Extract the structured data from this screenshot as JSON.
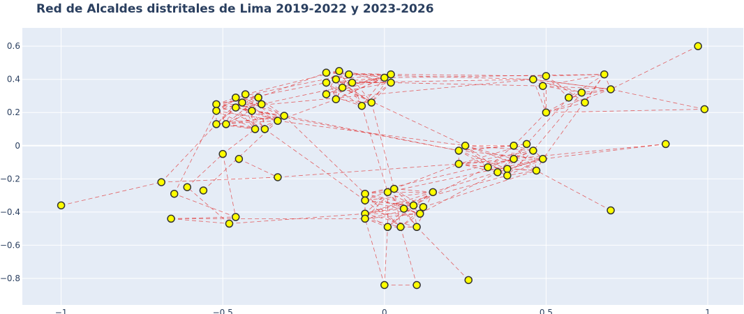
{
  "chart_data": {
    "type": "scatter",
    "title": "Red de Alcaldes distritales de Lima 2019-2022 y 2023-2026",
    "xlabel": "",
    "ylabel": "",
    "xlim": [
      -1.12,
      1.11
    ],
    "ylim": [
      -0.96,
      0.71
    ],
    "xticks": [
      -1,
      -0.5,
      0,
      0.5,
      1
    ],
    "xtick_labels": [
      "−1",
      "−0.5",
      "0",
      "0.5",
      "1"
    ],
    "yticks": [
      0.6,
      0.4,
      0.2,
      0,
      -0.2,
      -0.4,
      -0.6,
      -0.8
    ],
    "ytick_labels": [
      "0.6",
      "0.4",
      "0.2",
      "0",
      "−0.2",
      "−0.4",
      "−0.6",
      "−0.8"
    ],
    "grid": true,
    "colors": {
      "plot_bg": "#e5ecf6",
      "grid": "#ffffff",
      "node_fill": "#ffff00",
      "node_stroke": "#333333",
      "edge": "#e03030",
      "title": "#2a3f5f"
    },
    "node_clusters": {
      "west": [
        [
          -0.52,
          0.25
        ],
        [
          -0.52,
          0.21
        ],
        [
          -0.46,
          0.29
        ],
        [
          -0.43,
          0.31
        ],
        [
          -0.39,
          0.29
        ],
        [
          -0.44,
          0.26
        ],
        [
          -0.38,
          0.25
        ],
        [
          -0.46,
          0.23
        ],
        [
          -0.41,
          0.21
        ],
        [
          -0.33,
          0.15
        ],
        [
          -0.31,
          0.18
        ],
        [
          -0.52,
          0.13
        ],
        [
          -0.49,
          0.13
        ],
        [
          -0.4,
          0.1
        ],
        [
          -0.37,
          0.1
        ]
      ],
      "northcenter": [
        [
          -0.18,
          0.44
        ],
        [
          -0.14,
          0.45
        ],
        [
          -0.11,
          0.43
        ],
        [
          -0.18,
          0.38
        ],
        [
          -0.15,
          0.4
        ],
        [
          -0.1,
          0.38
        ],
        [
          -0.13,
          0.35
        ],
        [
          -0.18,
          0.31
        ],
        [
          -0.15,
          0.28
        ],
        [
          0.0,
          0.41
        ],
        [
          0.02,
          0.43
        ],
        [
          0.02,
          0.38
        ],
        [
          -0.04,
          0.26
        ],
        [
          -0.07,
          0.24
        ]
      ],
      "northeast": [
        [
          0.46,
          0.4
        ],
        [
          0.5,
          0.42
        ],
        [
          0.49,
          0.36
        ],
        [
          0.68,
          0.43
        ],
        [
          0.7,
          0.34
        ],
        [
          0.57,
          0.29
        ],
        [
          0.61,
          0.32
        ],
        [
          0.62,
          0.26
        ],
        [
          0.5,
          0.2
        ]
      ],
      "east": [
        [
          0.25,
          0.0
        ],
        [
          0.23,
          -0.03
        ],
        [
          0.4,
          0.0
        ],
        [
          0.44,
          0.01
        ],
        [
          0.46,
          -0.03
        ],
        [
          0.23,
          -0.11
        ],
        [
          0.32,
          -0.13
        ],
        [
          0.35,
          -0.16
        ],
        [
          0.4,
          -0.08
        ],
        [
          0.38,
          -0.14
        ],
        [
          0.47,
          -0.15
        ],
        [
          0.49,
          -0.08
        ],
        [
          0.38,
          -0.18
        ]
      ],
      "south": [
        [
          -0.06,
          -0.29
        ],
        [
          0.01,
          -0.28
        ],
        [
          0.03,
          -0.26
        ],
        [
          0.15,
          -0.28
        ],
        [
          -0.06,
          -0.33
        ],
        [
          0.09,
          -0.36
        ],
        [
          0.12,
          -0.37
        ],
        [
          0.06,
          -0.38
        ],
        [
          0.11,
          -0.41
        ],
        [
          -0.06,
          -0.41
        ],
        [
          -0.06,
          -0.44
        ],
        [
          0.01,
          -0.49
        ],
        [
          0.05,
          -0.49
        ],
        [
          0.1,
          -0.49
        ]
      ],
      "southwest": [
        [
          -0.5,
          -0.05
        ],
        [
          -0.45,
          -0.08
        ],
        [
          -0.69,
          -0.22
        ],
        [
          -0.61,
          -0.25
        ],
        [
          -0.65,
          -0.29
        ],
        [
          -0.56,
          -0.27
        ],
        [
          -0.33,
          -0.19
        ],
        [
          -0.66,
          -0.44
        ],
        [
          -0.46,
          -0.43
        ],
        [
          -0.48,
          -0.47
        ]
      ],
      "outliers": [
        [
          -1.0,
          -0.36
        ],
        [
          0.97,
          0.6
        ],
        [
          0.99,
          0.22
        ],
        [
          0.87,
          0.01
        ],
        [
          0.7,
          -0.39
        ],
        [
          0.26,
          -0.81
        ],
        [
          0.0,
          -0.84
        ],
        [
          0.1,
          -0.84
        ]
      ]
    },
    "extra_edges": [
      [
        [
          -1.0,
          -0.36
        ],
        [
          -0.69,
          -0.22
        ]
      ],
      [
        [
          0.97,
          0.6
        ],
        [
          0.7,
          0.34
        ]
      ],
      [
        [
          0.99,
          0.22
        ],
        [
          0.7,
          0.34
        ]
      ],
      [
        [
          0.99,
          0.22
        ],
        [
          0.5,
          0.2
        ]
      ],
      [
        [
          0.87,
          0.01
        ],
        [
          0.49,
          -0.08
        ]
      ],
      [
        [
          0.87,
          0.01
        ],
        [
          0.23,
          -0.11
        ]
      ],
      [
        [
          0.7,
          -0.39
        ],
        [
          0.47,
          -0.15
        ]
      ],
      [
        [
          0.26,
          -0.81
        ],
        [
          0.1,
          -0.49
        ]
      ],
      [
        [
          0.0,
          -0.84
        ],
        [
          0.1,
          -0.84
        ]
      ],
      [
        [
          0.0,
          -0.84
        ],
        [
          0.01,
          -0.49
        ]
      ],
      [
        [
          0.0,
          -0.84
        ],
        [
          -0.06,
          -0.44
        ]
      ],
      [
        [
          0.1,
          -0.84
        ],
        [
          0.05,
          -0.49
        ]
      ],
      [
        [
          -0.69,
          -0.22
        ],
        [
          -0.33,
          -0.19
        ]
      ],
      [
        [
          -0.69,
          -0.22
        ],
        [
          -0.52,
          0.13
        ]
      ],
      [
        [
          -0.65,
          -0.29
        ],
        [
          -0.52,
          0.21
        ]
      ],
      [
        [
          -0.61,
          -0.25
        ],
        [
          -0.5,
          -0.05
        ]
      ],
      [
        [
          -0.66,
          -0.44
        ],
        [
          -0.48,
          -0.47
        ]
      ],
      [
        [
          -0.66,
          -0.44
        ],
        [
          -0.46,
          -0.43
        ]
      ],
      [
        [
          -0.66,
          -0.44
        ],
        [
          -0.06,
          -0.44
        ]
      ],
      [
        [
          -0.48,
          -0.47
        ],
        [
          -0.06,
          -0.41
        ]
      ],
      [
        [
          -0.46,
          -0.43
        ],
        [
          -0.65,
          -0.29
        ]
      ],
      [
        [
          -0.48,
          -0.47
        ],
        [
          -0.61,
          -0.25
        ]
      ],
      [
        [
          -0.5,
          -0.05
        ],
        [
          -0.46,
          -0.43
        ]
      ],
      [
        [
          -0.45,
          -0.08
        ],
        [
          -0.33,
          -0.19
        ]
      ],
      [
        [
          -0.5,
          -0.05
        ],
        [
          -0.4,
          0.1
        ]
      ],
      [
        [
          -0.33,
          -0.19
        ],
        [
          0.23,
          -0.11
        ]
      ],
      [
        [
          -0.56,
          -0.27
        ],
        [
          -0.33,
          0.15
        ]
      ],
      [
        [
          -0.31,
          0.18
        ],
        [
          -0.06,
          -0.29
        ]
      ],
      [
        [
          -0.37,
          0.1
        ],
        [
          -0.06,
          -0.33
        ]
      ],
      [
        [
          -0.31,
          0.18
        ],
        [
          0.23,
          -0.03
        ]
      ],
      [
        [
          -0.33,
          0.15
        ],
        [
          0.25,
          0.0
        ]
      ],
      [
        [
          -0.39,
          0.29
        ],
        [
          -0.18,
          0.44
        ]
      ],
      [
        [
          -0.43,
          0.31
        ],
        [
          -0.14,
          0.45
        ]
      ],
      [
        [
          -0.52,
          0.25
        ],
        [
          -0.18,
          0.38
        ]
      ],
      [
        [
          -0.38,
          0.25
        ],
        [
          0.0,
          0.41
        ]
      ],
      [
        [
          -0.46,
          0.29
        ],
        [
          -0.11,
          0.43
        ]
      ],
      [
        [
          -0.46,
          0.23
        ],
        [
          0.46,
          0.4
        ]
      ],
      [
        [
          -0.41,
          0.21
        ],
        [
          0.23,
          -0.03
        ]
      ],
      [
        [
          -0.11,
          0.43
        ],
        [
          0.46,
          0.4
        ]
      ],
      [
        [
          0.02,
          0.43
        ],
        [
          0.5,
          0.42
        ]
      ],
      [
        [
          0.02,
          0.38
        ],
        [
          0.49,
          0.36
        ]
      ],
      [
        [
          0.0,
          0.41
        ],
        [
          0.68,
          0.43
        ]
      ],
      [
        [
          -0.1,
          0.38
        ],
        [
          0.46,
          0.4
        ]
      ],
      [
        [
          -0.07,
          0.24
        ],
        [
          0.01,
          -0.28
        ]
      ],
      [
        [
          -0.04,
          0.26
        ],
        [
          0.03,
          -0.26
        ]
      ],
      [
        [
          -0.13,
          0.35
        ],
        [
          0.25,
          0.0
        ]
      ],
      [
        [
          -0.15,
          0.28
        ],
        [
          -0.33,
          0.15
        ]
      ],
      [
        [
          0.5,
          0.2
        ],
        [
          0.4,
          0.0
        ]
      ],
      [
        [
          0.57,
          0.29
        ],
        [
          0.44,
          0.01
        ]
      ],
      [
        [
          0.61,
          0.32
        ],
        [
          0.46,
          -0.03
        ]
      ],
      [
        [
          0.5,
          0.42
        ],
        [
          0.5,
          0.2
        ]
      ],
      [
        [
          0.7,
          0.34
        ],
        [
          0.46,
          0.4
        ]
      ],
      [
        [
          0.68,
          0.43
        ],
        [
          0.49,
          -0.08
        ]
      ],
      [
        [
          0.15,
          -0.28
        ],
        [
          0.38,
          -0.14
        ]
      ],
      [
        [
          0.11,
          -0.41
        ],
        [
          0.35,
          -0.16
        ]
      ],
      [
        [
          0.12,
          -0.37
        ],
        [
          0.47,
          -0.15
        ]
      ],
      [
        [
          0.09,
          -0.36
        ],
        [
          0.32,
          -0.13
        ]
      ],
      [
        [
          0.03,
          -0.26
        ],
        [
          0.23,
          -0.11
        ]
      ],
      [
        [
          -0.06,
          -0.29
        ],
        [
          0.4,
          -0.08
        ]
      ],
      [
        [
          -0.06,
          -0.41
        ],
        [
          0.38,
          -0.18
        ]
      ],
      [
        [
          0.01,
          -0.28
        ],
        [
          0.49,
          -0.08
        ]
      ]
    ]
  }
}
